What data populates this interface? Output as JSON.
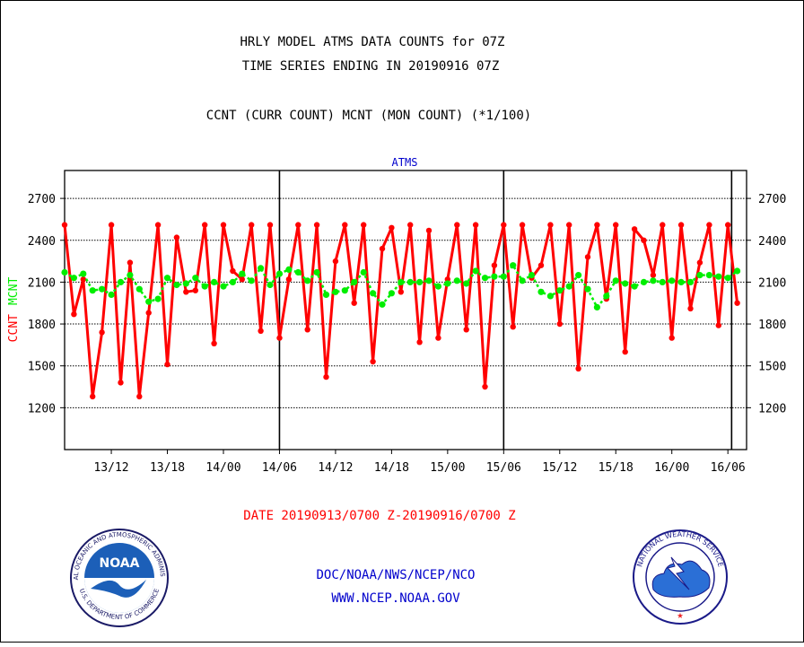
{
  "header": {
    "title_line1": "HRLY MODEL ATMS DATA COUNTS for 07Z",
    "title_line2": "TIME SERIES ENDING IN 20190916 07Z",
    "subtitle": "CCNT (CURR COUNT) MCNT (MON COUNT) (*1/100)"
  },
  "chart_data": {
    "type": "line",
    "title": "ATMS",
    "xlabel": "DATE 20190913/0700 Z-20190916/0700 Z",
    "ylabel_left_parts": [
      "CCNT",
      "MCNT"
    ],
    "ylim": [
      900,
      2900
    ],
    "yticks": [
      1200,
      1500,
      1800,
      2100,
      2400,
      2700
    ],
    "xlim": [
      0,
      73
    ],
    "x_ticks": [
      {
        "x": 5,
        "label": "13/12"
      },
      {
        "x": 11,
        "label": "13/18"
      },
      {
        "x": 17,
        "label": "14/00"
      },
      {
        "x": 23,
        "label": "14/06"
      },
      {
        "x": 29,
        "label": "14/12"
      },
      {
        "x": 35,
        "label": "14/18"
      },
      {
        "x": 41,
        "label": "15/00"
      },
      {
        "x": 47,
        "label": "15/06"
      },
      {
        "x": 53,
        "label": "15/12"
      },
      {
        "x": 59,
        "label": "15/18"
      },
      {
        "x": 65,
        "label": "16/00"
      },
      {
        "x": 71,
        "label": "16/06"
      }
    ],
    "vertical_lines": [
      23,
      47,
      71.4
    ],
    "grid": "horizontal dotted",
    "series": [
      {
        "name": "CCNT",
        "color": "#ff0000",
        "values": [
          2510,
          1870,
          2120,
          1280,
          1740,
          2510,
          1380,
          2240,
          1280,
          1880,
          2510,
          1510,
          2420,
          2030,
          2040,
          2510,
          1660,
          2510,
          2180,
          2120,
          2510,
          1750,
          2510,
          1700,
          2120,
          2510,
          1760,
          2510,
          1420,
          2250,
          2510,
          1950,
          2510,
          1530,
          2340,
          2490,
          2030,
          2510,
          1670,
          2470,
          1700,
          2120,
          2510,
          1760,
          2510,
          1350,
          2220,
          2510,
          1780,
          2510,
          2130,
          2220,
          2510,
          1800,
          2510,
          1480,
          2280,
          2510,
          1980,
          2510,
          1600,
          2480,
          2400,
          2150,
          2510,
          1700,
          2510,
          1910,
          2240,
          2510,
          1790,
          2510,
          1950
        ]
      },
      {
        "name": "MCNT",
        "color": "#00ee00",
        "values": [
          2170,
          2130,
          2160,
          2040,
          2050,
          2010,
          2100,
          2150,
          2050,
          1960,
          1980,
          2130,
          2080,
          2090,
          2130,
          2070,
          2100,
          2070,
          2100,
          2160,
          2110,
          2200,
          2080,
          2160,
          2190,
          2170,
          2110,
          2170,
          2010,
          2030,
          2040,
          2100,
          2170,
          2020,
          1940,
          2020,
          2100,
          2100,
          2100,
          2110,
          2070,
          2090,
          2110,
          2090,
          2180,
          2130,
          2140,
          2140,
          2220,
          2110,
          2150,
          2030,
          2000,
          2040,
          2070,
          2150,
          2050,
          1920,
          2000,
          2110,
          2090,
          2070,
          2100,
          2110,
          2100,
          2110,
          2100,
          2100,
          2150,
          2150,
          2140,
          2130,
          2180
        ]
      }
    ]
  },
  "footer": {
    "line1": "DOC/NOAA/NWS/NCEP/NCO",
    "line2": "WWW.NCEP.NOAA.GOV"
  },
  "logos": {
    "noaa_text": "NOAA",
    "noaa_ring_text": "NATIONAL OCEANIC AND ATMOSPHERIC ADMINISTRATION",
    "noaa_ring_text_bottom": "U.S. DEPARTMENT OF COMMERCE",
    "nws_ring_text": "NATIONAL WEATHER SERVICE"
  },
  "colors": {
    "title": "#000000",
    "chart_title": "#0000cc",
    "date_label": "#ff0000",
    "footer": "#0000cc",
    "ccnt": "#ff0000",
    "mcnt": "#00ee00"
  }
}
